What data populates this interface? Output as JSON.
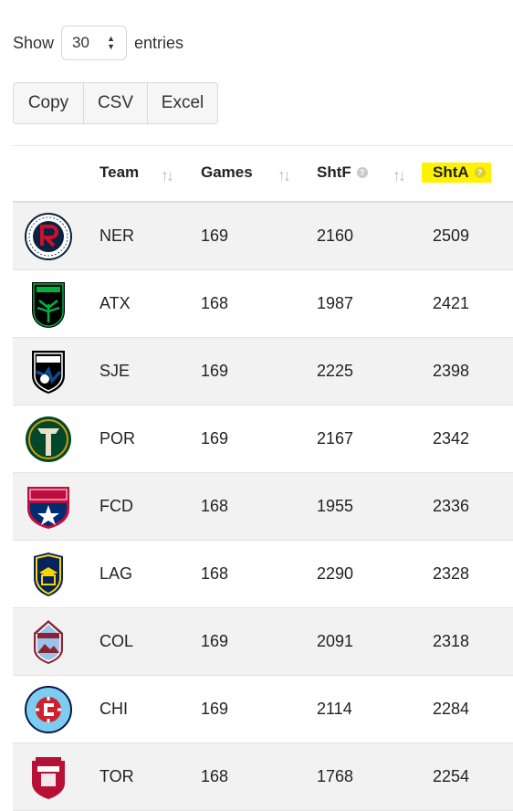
{
  "length_menu": {
    "show_label": "Show",
    "selected": "30",
    "entries_label": "entries"
  },
  "buttons": [
    {
      "label": "Copy"
    },
    {
      "label": "CSV"
    },
    {
      "label": "Excel"
    }
  ],
  "table": {
    "columns": [
      "Team",
      "Games",
      "ShtF",
      "ShtA"
    ],
    "highlighted_column": "ShtA",
    "rows": [
      {
        "logo": "new-england-revolution-logo-icon",
        "team": "NER",
        "games": "169",
        "shtf": "2160",
        "shta": "2509"
      },
      {
        "logo": "austin-fc-logo-icon",
        "team": "ATX",
        "games": "168",
        "shtf": "1987",
        "shta": "2421"
      },
      {
        "logo": "san-jose-earthquakes-logo-icon",
        "team": "SJE",
        "games": "169",
        "shtf": "2225",
        "shta": "2398"
      },
      {
        "logo": "portland-timbers-logo-icon",
        "team": "POR",
        "games": "169",
        "shtf": "2167",
        "shta": "2342"
      },
      {
        "logo": "fc-dallas-logo-icon",
        "team": "FCD",
        "games": "168",
        "shtf": "1955",
        "shta": "2336"
      },
      {
        "logo": "la-galaxy-logo-icon",
        "team": "LAG",
        "games": "168",
        "shtf": "2290",
        "shta": "2328"
      },
      {
        "logo": "colorado-rapids-logo-icon",
        "team": "COL",
        "games": "169",
        "shtf": "2091",
        "shta": "2318"
      },
      {
        "logo": "chicago-fire-logo-icon",
        "team": "CHI",
        "games": "169",
        "shtf": "2114",
        "shta": "2284"
      },
      {
        "logo": "toronto-fc-logo-icon",
        "team": "TOR",
        "games": "168",
        "shtf": "1768",
        "shta": "2254"
      }
    ]
  },
  "colors": {
    "highlight": "#fff200",
    "stripe": "#f2f2f2"
  }
}
